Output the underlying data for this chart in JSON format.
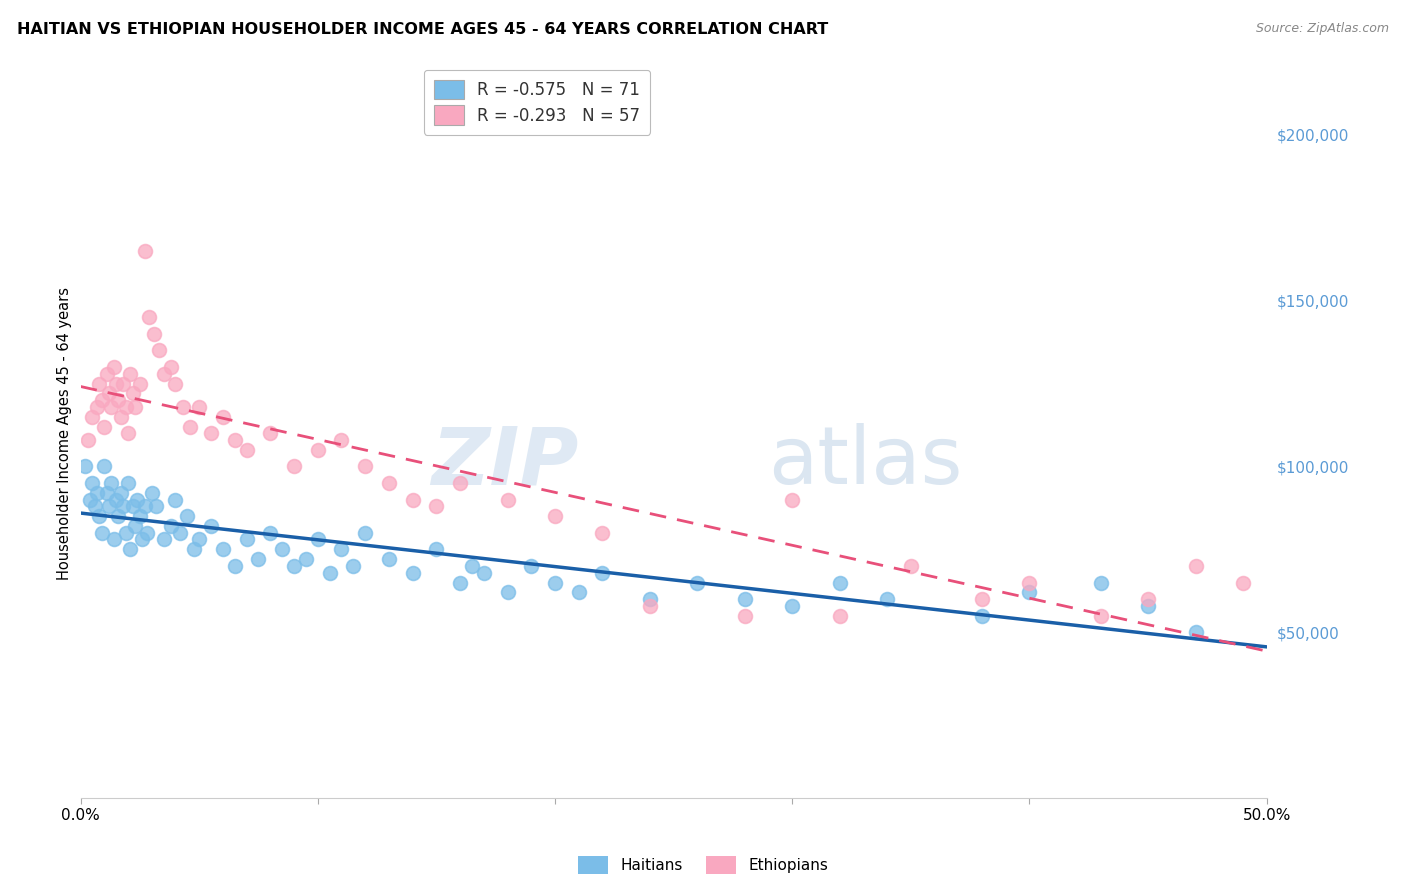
{
  "title": "HAITIAN VS ETHIOPIAN HOUSEHOLDER INCOME AGES 45 - 64 YEARS CORRELATION CHART",
  "source": "Source: ZipAtlas.com",
  "ylabel": "Householder Income Ages 45 - 64 years",
  "x_min": 0.0,
  "x_max": 0.5,
  "y_min": 0,
  "y_max": 220000,
  "x_tick_positions": [
    0.0,
    0.1,
    0.2,
    0.3,
    0.4,
    0.5
  ],
  "x_tick_labels": [
    "0.0%",
    "",
    "",
    "",
    "",
    "50.0%"
  ],
  "y_tick_labels_right": [
    "$50,000",
    "$100,000",
    "$150,000",
    "$200,000"
  ],
  "y_tick_values_right": [
    50000,
    100000,
    150000,
    200000
  ],
  "haitian_color": "#7bbde8",
  "ethiopian_color": "#f9a8c0",
  "haitian_line_color": "#1a5fa8",
  "ethiopian_line_color": "#e8507a",
  "haitian_R": "-0.575",
  "haitian_N": "71",
  "ethiopian_R": "-0.293",
  "ethiopian_N": "57",
  "legend_label_1": "Haitians",
  "legend_label_2": "Ethiopians",
  "watermark_zip": "ZIP",
  "watermark_atlas": "atlas",
  "background_color": "#ffffff",
  "grid_color": "#d8d8d8",
  "haitian_x": [
    0.002,
    0.004,
    0.005,
    0.006,
    0.007,
    0.008,
    0.009,
    0.01,
    0.011,
    0.012,
    0.013,
    0.014,
    0.015,
    0.016,
    0.017,
    0.018,
    0.019,
    0.02,
    0.021,
    0.022,
    0.023,
    0.024,
    0.025,
    0.026,
    0.027,
    0.028,
    0.03,
    0.032,
    0.035,
    0.038,
    0.04,
    0.042,
    0.045,
    0.048,
    0.05,
    0.055,
    0.06,
    0.065,
    0.07,
    0.075,
    0.08,
    0.085,
    0.09,
    0.095,
    0.1,
    0.105,
    0.11,
    0.115,
    0.12,
    0.13,
    0.14,
    0.15,
    0.16,
    0.165,
    0.17,
    0.18,
    0.19,
    0.2,
    0.21,
    0.22,
    0.24,
    0.26,
    0.28,
    0.3,
    0.32,
    0.34,
    0.38,
    0.4,
    0.43,
    0.45,
    0.47
  ],
  "haitian_y": [
    100000,
    90000,
    95000,
    88000,
    92000,
    85000,
    80000,
    100000,
    92000,
    88000,
    95000,
    78000,
    90000,
    85000,
    92000,
    88000,
    80000,
    95000,
    75000,
    88000,
    82000,
    90000,
    85000,
    78000,
    88000,
    80000,
    92000,
    88000,
    78000,
    82000,
    90000,
    80000,
    85000,
    75000,
    78000,
    82000,
    75000,
    70000,
    78000,
    72000,
    80000,
    75000,
    70000,
    72000,
    78000,
    68000,
    75000,
    70000,
    80000,
    72000,
    68000,
    75000,
    65000,
    70000,
    68000,
    62000,
    70000,
    65000,
    62000,
    68000,
    60000,
    65000,
    60000,
    58000,
    65000,
    60000,
    55000,
    62000,
    65000,
    58000,
    50000
  ],
  "ethiopian_x": [
    0.003,
    0.005,
    0.007,
    0.008,
    0.009,
    0.01,
    0.011,
    0.012,
    0.013,
    0.014,
    0.015,
    0.016,
    0.017,
    0.018,
    0.019,
    0.02,
    0.021,
    0.022,
    0.023,
    0.025,
    0.027,
    0.029,
    0.031,
    0.033,
    0.035,
    0.038,
    0.04,
    0.043,
    0.046,
    0.05,
    0.055,
    0.06,
    0.065,
    0.07,
    0.08,
    0.09,
    0.1,
    0.11,
    0.12,
    0.13,
    0.14,
    0.15,
    0.16,
    0.18,
    0.2,
    0.22,
    0.24,
    0.28,
    0.3,
    0.32,
    0.35,
    0.38,
    0.4,
    0.43,
    0.45,
    0.47,
    0.49
  ],
  "ethiopian_y": [
    108000,
    115000,
    118000,
    125000,
    120000,
    112000,
    128000,
    122000,
    118000,
    130000,
    125000,
    120000,
    115000,
    125000,
    118000,
    110000,
    128000,
    122000,
    118000,
    125000,
    165000,
    145000,
    140000,
    135000,
    128000,
    130000,
    125000,
    118000,
    112000,
    118000,
    110000,
    115000,
    108000,
    105000,
    110000,
    100000,
    105000,
    108000,
    100000,
    95000,
    90000,
    88000,
    95000,
    90000,
    85000,
    80000,
    58000,
    55000,
    90000,
    55000,
    70000,
    60000,
    65000,
    55000,
    60000,
    70000,
    65000
  ]
}
